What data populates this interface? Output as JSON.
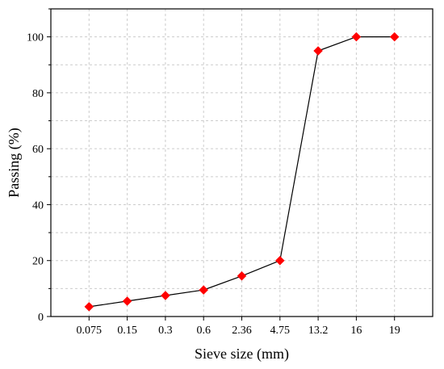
{
  "chart_data": {
    "type": "line",
    "title": "",
    "xlabel": "Sieve size (mm)",
    "ylabel": "Passing (%)",
    "categories": [
      "0.075",
      "0.15",
      "0.3",
      "0.6",
      "2.36",
      "4.75",
      "13.2",
      "16",
      "19"
    ],
    "series": [
      {
        "values": [
          3.5,
          5.5,
          7.5,
          9.5,
          14.5,
          20,
          95,
          100,
          100
        ],
        "marker": "diamond",
        "marker_color": "#ff0000",
        "line_color": "#000000"
      }
    ],
    "ylim": [
      0,
      110
    ],
    "yticks": [
      "0",
      "20",
      "40",
      "60",
      "80",
      "100"
    ],
    "grid": true,
    "legend": "none"
  }
}
